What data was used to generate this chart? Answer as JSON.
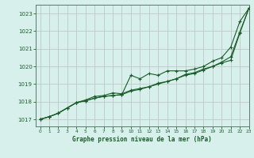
{
  "title": "Graphe pression niveau de la mer (hPa)",
  "background_color": "#d8f0ec",
  "plot_bg_color": "#d8f0ec",
  "grid_color": "#c0c8c4",
  "line_color": "#1a5c2a",
  "spine_color": "#5a7a6a",
  "xlim": [
    -0.5,
    23
  ],
  "ylim": [
    1016.6,
    1023.5
  ],
  "yticks": [
    1017,
    1018,
    1019,
    1020,
    1021,
    1022,
    1023
  ],
  "xticks": [
    0,
    1,
    2,
    3,
    4,
    5,
    6,
    7,
    8,
    9,
    10,
    11,
    12,
    13,
    14,
    15,
    16,
    17,
    18,
    19,
    20,
    21,
    22,
    23
  ],
  "series": [
    [
      1017.0,
      1017.15,
      1017.35,
      1017.65,
      1017.95,
      1018.05,
      1018.2,
      1018.3,
      1018.35,
      1018.4,
      1019.5,
      1019.3,
      1019.6,
      1019.5,
      1019.75,
      1019.75,
      1019.75,
      1019.85,
      1020.0,
      1020.3,
      1020.5,
      1021.1,
      1022.55,
      1023.3
    ],
    [
      1017.0,
      1017.15,
      1017.35,
      1017.65,
      1017.95,
      1018.05,
      1018.2,
      1018.3,
      1018.35,
      1018.4,
      1018.6,
      1018.7,
      1018.85,
      1019.0,
      1019.15,
      1019.3,
      1019.5,
      1019.6,
      1019.8,
      1020.0,
      1020.2,
      1020.35,
      1021.9,
      1023.3
    ],
    [
      1017.0,
      1017.15,
      1017.35,
      1017.65,
      1017.95,
      1018.1,
      1018.3,
      1018.35,
      1018.5,
      1018.45,
      1018.65,
      1018.75,
      1018.85,
      1019.05,
      1019.15,
      1019.3,
      1019.55,
      1019.65,
      1019.85,
      1020.0,
      1020.25,
      1020.55,
      1021.95,
      1023.3
    ]
  ]
}
